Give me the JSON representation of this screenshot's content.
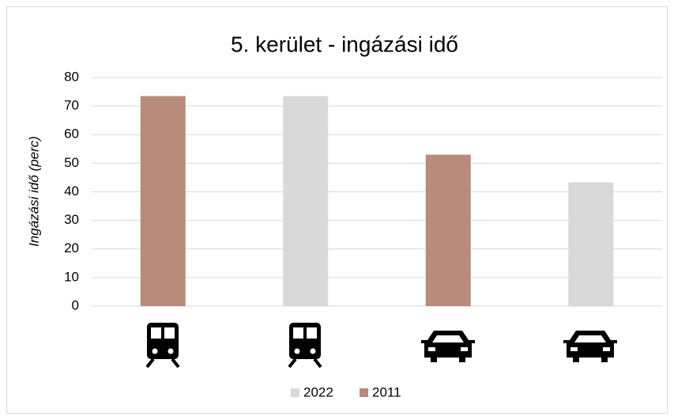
{
  "chart_data": {
    "type": "bar",
    "title": "5. kerület - ingázási idő",
    "y_label": "Ingázási idő (perc)",
    "categories": [
      null,
      null,
      null,
      null
    ],
    "series": [
      {
        "name": "2022",
        "color": "#d9d9d9",
        "values": [
          null,
          73.5,
          null,
          43.3
        ]
      },
      {
        "name": "2011",
        "color": "#b88b7a",
        "values": [
          73.5,
          null,
          53,
          null
        ]
      }
    ],
    "ylim": [
      0,
      80
    ],
    "yticks": [
      0,
      10,
      20,
      30,
      40,
      50,
      60,
      70,
      80
    ],
    "grid": true,
    "legend": "bottom"
  }
}
